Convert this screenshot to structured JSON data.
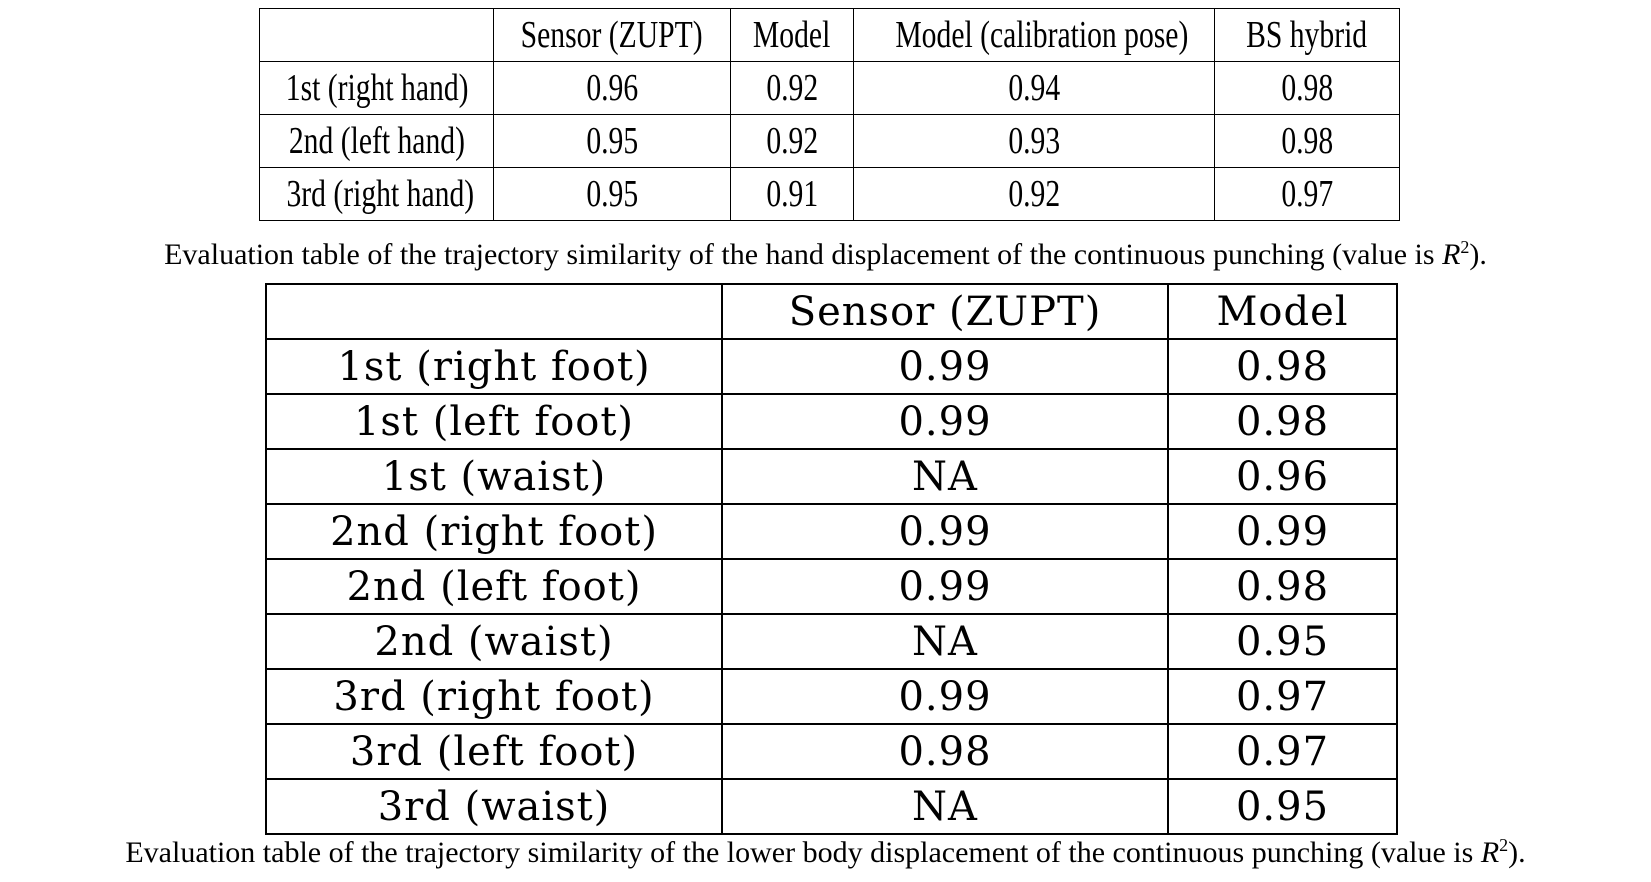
{
  "table_hand": {
    "headers": [
      "",
      "Sensor (ZUPT)",
      "Model",
      "Model (calibration pose)",
      "BS hybrid"
    ],
    "rows": [
      [
        "1st (right hand)",
        "0.96",
        "0.92",
        "0.94",
        "0.98"
      ],
      [
        "2nd (left hand)",
        "0.95",
        "0.92",
        "0.93",
        "0.98"
      ],
      [
        "3rd (right hand)",
        "0.95",
        "0.91",
        "0.92",
        "0.97"
      ]
    ],
    "caption_pre": "Evaluation table of the trajectory similarity of the hand displacement of the continuous punching (value is ",
    "caption_var": "R",
    "caption_sup": "2",
    "caption_post": ")."
  },
  "table_lower": {
    "headers": [
      "",
      "Sensor (ZUPT)",
      "Model"
    ],
    "rows": [
      [
        "1st (right foot)",
        "0.99",
        "0.98"
      ],
      [
        "1st (left foot)",
        "0.99",
        "0.98"
      ],
      [
        "1st (waist)",
        "NA",
        "0.96"
      ],
      [
        "2nd (right foot)",
        "0.99",
        "0.99"
      ],
      [
        "2nd (left foot)",
        "0.99",
        "0.98"
      ],
      [
        "2nd (waist)",
        "NA",
        "0.95"
      ],
      [
        "3rd (right foot)",
        "0.99",
        "0.97"
      ],
      [
        "3rd (left foot)",
        "0.98",
        "0.97"
      ],
      [
        "3rd (waist)",
        "NA",
        "0.95"
      ]
    ],
    "caption_pre": "Evaluation table of the trajectory similarity of the lower body displacement of the continuous punching (value is ",
    "caption_var": "R",
    "caption_sup": "2",
    "caption_post": ")."
  }
}
